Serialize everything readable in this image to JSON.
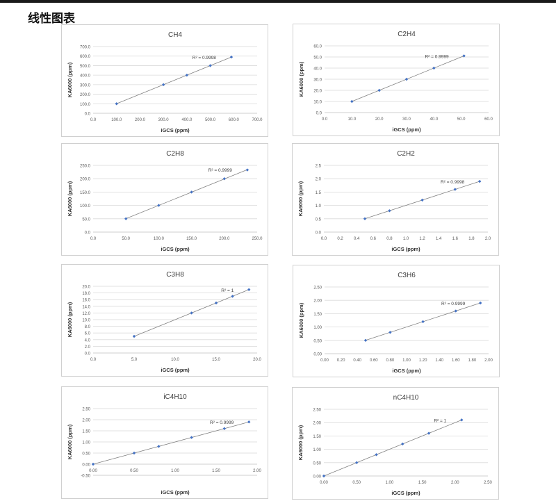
{
  "page": {
    "heading": "线性图表"
  },
  "colors": {
    "point": "#4472c4",
    "trendline": "#808080",
    "grid": "#d9d9d9"
  },
  "chart_data": [
    {
      "type": "scatter",
      "title": "CH4",
      "xlabel": "iGCS (ppm)",
      "ylabel": "KA6000 (ppm)",
      "xlim": [
        0,
        700
      ],
      "ylim": [
        0,
        700
      ],
      "xticks": [
        "0.0",
        "100.0",
        "200.0",
        "300.0",
        "400.0",
        "500.0",
        "600.0",
        "700.0"
      ],
      "yticks": [
        "0.0",
        "100.0",
        "200.0",
        "300.0",
        "400.0",
        "500.0",
        "600.0",
        "700.0"
      ],
      "x": [
        100,
        300,
        400,
        500,
        590
      ],
      "y": [
        100,
        300,
        400,
        500,
        590
      ],
      "trendline": "linear",
      "annotation": "R² = 0.9998",
      "grid": "horizontal"
    },
    {
      "type": "scatter",
      "title": "C2H4",
      "xlabel": "iGCS (ppm)",
      "ylabel": "KA6000 (ppm)",
      "xlim": [
        0,
        60
      ],
      "ylim": [
        0,
        60
      ],
      "xticks": [
        "0.0",
        "10.0",
        "20.0",
        "30.0",
        "40.0",
        "50.0",
        "60.0"
      ],
      "yticks": [
        "0.0",
        "10.0",
        "20.0",
        "30.0",
        "40.0",
        "50.0",
        "60.0"
      ],
      "x": [
        10,
        20,
        30,
        40,
        51
      ],
      "y": [
        10,
        20,
        30,
        40,
        51
      ],
      "trendline": "linear",
      "annotation": "R² = 0.9999",
      "grid": "horizontal"
    },
    {
      "type": "scatter",
      "title": "C2H8",
      "xlabel": "iGCS (ppm)",
      "ylabel": "KA6000 (ppm)",
      "xlim": [
        0,
        250
      ],
      "ylim": [
        0,
        250
      ],
      "xticks": [
        "0.0",
        "50.0",
        "100.0",
        "150.0",
        "200.0",
        "250.0"
      ],
      "yticks": [
        "0.0",
        "50.0",
        "100.0",
        "150.0",
        "200.0",
        "250.0"
      ],
      "x": [
        50,
        100,
        150,
        200,
        235
      ],
      "y": [
        50,
        100,
        150,
        200,
        233
      ],
      "trendline": "linear",
      "annotation": "R² = 0.9999",
      "grid": "horizontal"
    },
    {
      "type": "scatter",
      "title": "C2H2",
      "xlabel": "iGCS (ppm)",
      "ylabel": "KA6000 (ppm)",
      "xlim": [
        0,
        2
      ],
      "ylim": [
        0,
        2.5
      ],
      "xticks": [
        "0.0",
        "0.2",
        "0.4",
        "0.6",
        "0.8",
        "1.0",
        "1.2",
        "1.4",
        "1.6",
        "1.8",
        "2.0"
      ],
      "yticks": [
        "0.0",
        "0.5",
        "1.0",
        "1.5",
        "2.0",
        "2.5"
      ],
      "x": [
        0.5,
        0.8,
        1.2,
        1.6,
        1.9
      ],
      "y": [
        0.5,
        0.8,
        1.2,
        1.6,
        1.9
      ],
      "trendline": "linear",
      "annotation": "R² = 0.9998",
      "grid": "horizontal"
    },
    {
      "type": "scatter",
      "title": "C3H8",
      "xlabel": "iGCS (ppm)",
      "ylabel": "KA6000 (ppm)",
      "xlim": [
        0,
        20
      ],
      "ylim": [
        0,
        20
      ],
      "xticks": [
        "0.0",
        "5.0",
        "10.0",
        "15.0",
        "20.0"
      ],
      "yticks": [
        "0.0",
        "2.0",
        "4.0",
        "6.0",
        "8.0",
        "10.0",
        "12.0",
        "14.0",
        "16.0",
        "18.0",
        "20.0"
      ],
      "x": [
        5,
        12,
        15,
        17,
        19
      ],
      "y": [
        5,
        12,
        15,
        17,
        19
      ],
      "trendline": "linear",
      "annotation": "R² = 1",
      "grid": "horizontal"
    },
    {
      "type": "scatter",
      "title": "C3H6",
      "xlabel": "iGCS (ppm)",
      "ylabel": "KA6000 (ppm)",
      "xlim": [
        0,
        2
      ],
      "ylim": [
        0,
        2.5
      ],
      "xticks": [
        "0.00",
        "0.20",
        "0.40",
        "0.60",
        "0.80",
        "1.00",
        "1.20",
        "1.40",
        "1.60",
        "1.80",
        "2.00"
      ],
      "yticks": [
        "0.00",
        "0.50",
        "1.00",
        "1.50",
        "2.00",
        "2.50"
      ],
      "x": [
        0.5,
        0.8,
        1.2,
        1.6,
        1.9
      ],
      "y": [
        0.5,
        0.8,
        1.2,
        1.6,
        1.9
      ],
      "trendline": "linear",
      "annotation": "R² = 0.9999",
      "grid": "horizontal"
    },
    {
      "type": "scatter",
      "title": "iC4H10",
      "xlabel": "iGCS (ppm)",
      "ylabel": "KA6000 (ppm)",
      "xlim": [
        0,
        2
      ],
      "ylim": [
        -0.5,
        2.5
      ],
      "xticks": [
        "0.00",
        "0.50",
        "1.00",
        "1.50",
        "2.00"
      ],
      "yticks": [
        "-0.50",
        "0.00",
        "0.50",
        "1.00",
        "1.50",
        "2.00",
        "2.50"
      ],
      "x": [
        0,
        0.5,
        0.8,
        1.2,
        1.6,
        1.9
      ],
      "y": [
        0,
        0.5,
        0.8,
        1.2,
        1.6,
        1.9
      ],
      "trendline": "linear",
      "annotation": "R² = 0.9999",
      "grid": "horizontal"
    },
    {
      "type": "scatter",
      "title": "nC4H10",
      "xlabel": "iGCS (ppm)",
      "ylabel": "KA6000 (ppm)",
      "xlim": [
        0,
        2.5
      ],
      "ylim": [
        0,
        2.5
      ],
      "xticks": [
        "0.00",
        "0.50",
        "1.00",
        "1.50",
        "2.00",
        "2.50"
      ],
      "yticks": [
        "0.00",
        "0.50",
        "1.00",
        "1.50",
        "2.00",
        "2.50"
      ],
      "x": [
        0,
        0.5,
        0.8,
        1.2,
        1.6,
        2.1
      ],
      "y": [
        0,
        0.5,
        0.8,
        1.2,
        1.6,
        2.1
      ],
      "trendline": "linear",
      "annotation": "R² = 1",
      "grid": "horizontal"
    }
  ]
}
